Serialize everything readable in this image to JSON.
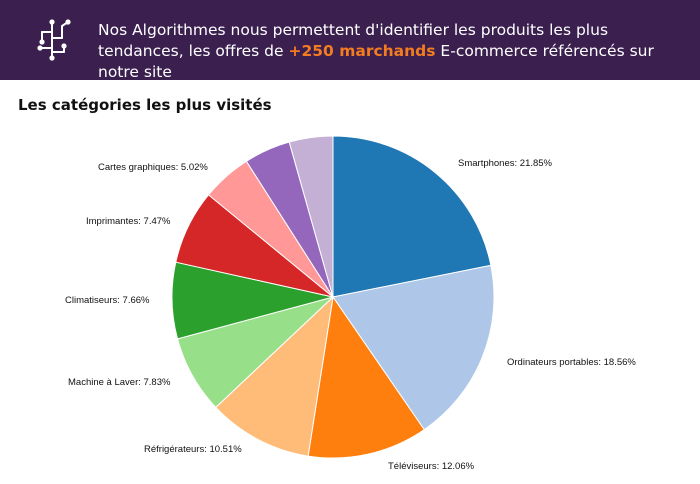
{
  "banner": {
    "text_before": "Nos Algorithmes nous permettent d'identifier les produits les plus tendances, les offres de ",
    "highlight": "+250 marchands",
    "text_after": " E-commerce référencés sur notre site",
    "icon": "circuit-network-icon",
    "colors": {
      "background": "#3a1f4f",
      "highlight": "#f47c20",
      "text": "#ffffff"
    }
  },
  "section": {
    "title": "Les catégories les plus visités"
  },
  "chart_data": {
    "type": "pie",
    "title": "",
    "start_angle": "top",
    "direction": "clockwise",
    "slices": [
      {
        "label": "Smartphones",
        "value": 21.85,
        "display": "Smartphones: 21.85%",
        "color": "#1f77b4"
      },
      {
        "label": "Ordinateurs portables",
        "value": 18.56,
        "display": "Ordinateurs portables: 18.56%",
        "color": "#aec7e8"
      },
      {
        "label": "Téléviseurs",
        "value": 12.06,
        "display": "Téléviseurs: 12.06%",
        "color": "#ff7f0e"
      },
      {
        "label": "Réfrigérateurs",
        "value": 10.51,
        "display": "Réfrigérateurs: 10.51%",
        "color": "#ffbb78"
      },
      {
        "label": "Machine à Laver",
        "value": 7.83,
        "display": "Machine à Laver: 7.83%",
        "color": "#98df8a"
      },
      {
        "label": "Climatiseurs",
        "value": 7.66,
        "display": "Climatiseurs: 7.66%",
        "color": "#2ca02c"
      },
      {
        "label": "Imprimantes",
        "value": 7.47,
        "display": "Imprimantes: 7.47%",
        "color": "#d62728"
      },
      {
        "label": "Cartes graphiques",
        "value": 5.02,
        "display": "Cartes graphiques: 5.02%",
        "color": "#ff9896"
      },
      {
        "label": "",
        "value": 4.66,
        "display": "",
        "color": "#9467bd"
      },
      {
        "label": "",
        "value": 4.38,
        "display": "",
        "color": "#c5b0d5"
      }
    ]
  }
}
